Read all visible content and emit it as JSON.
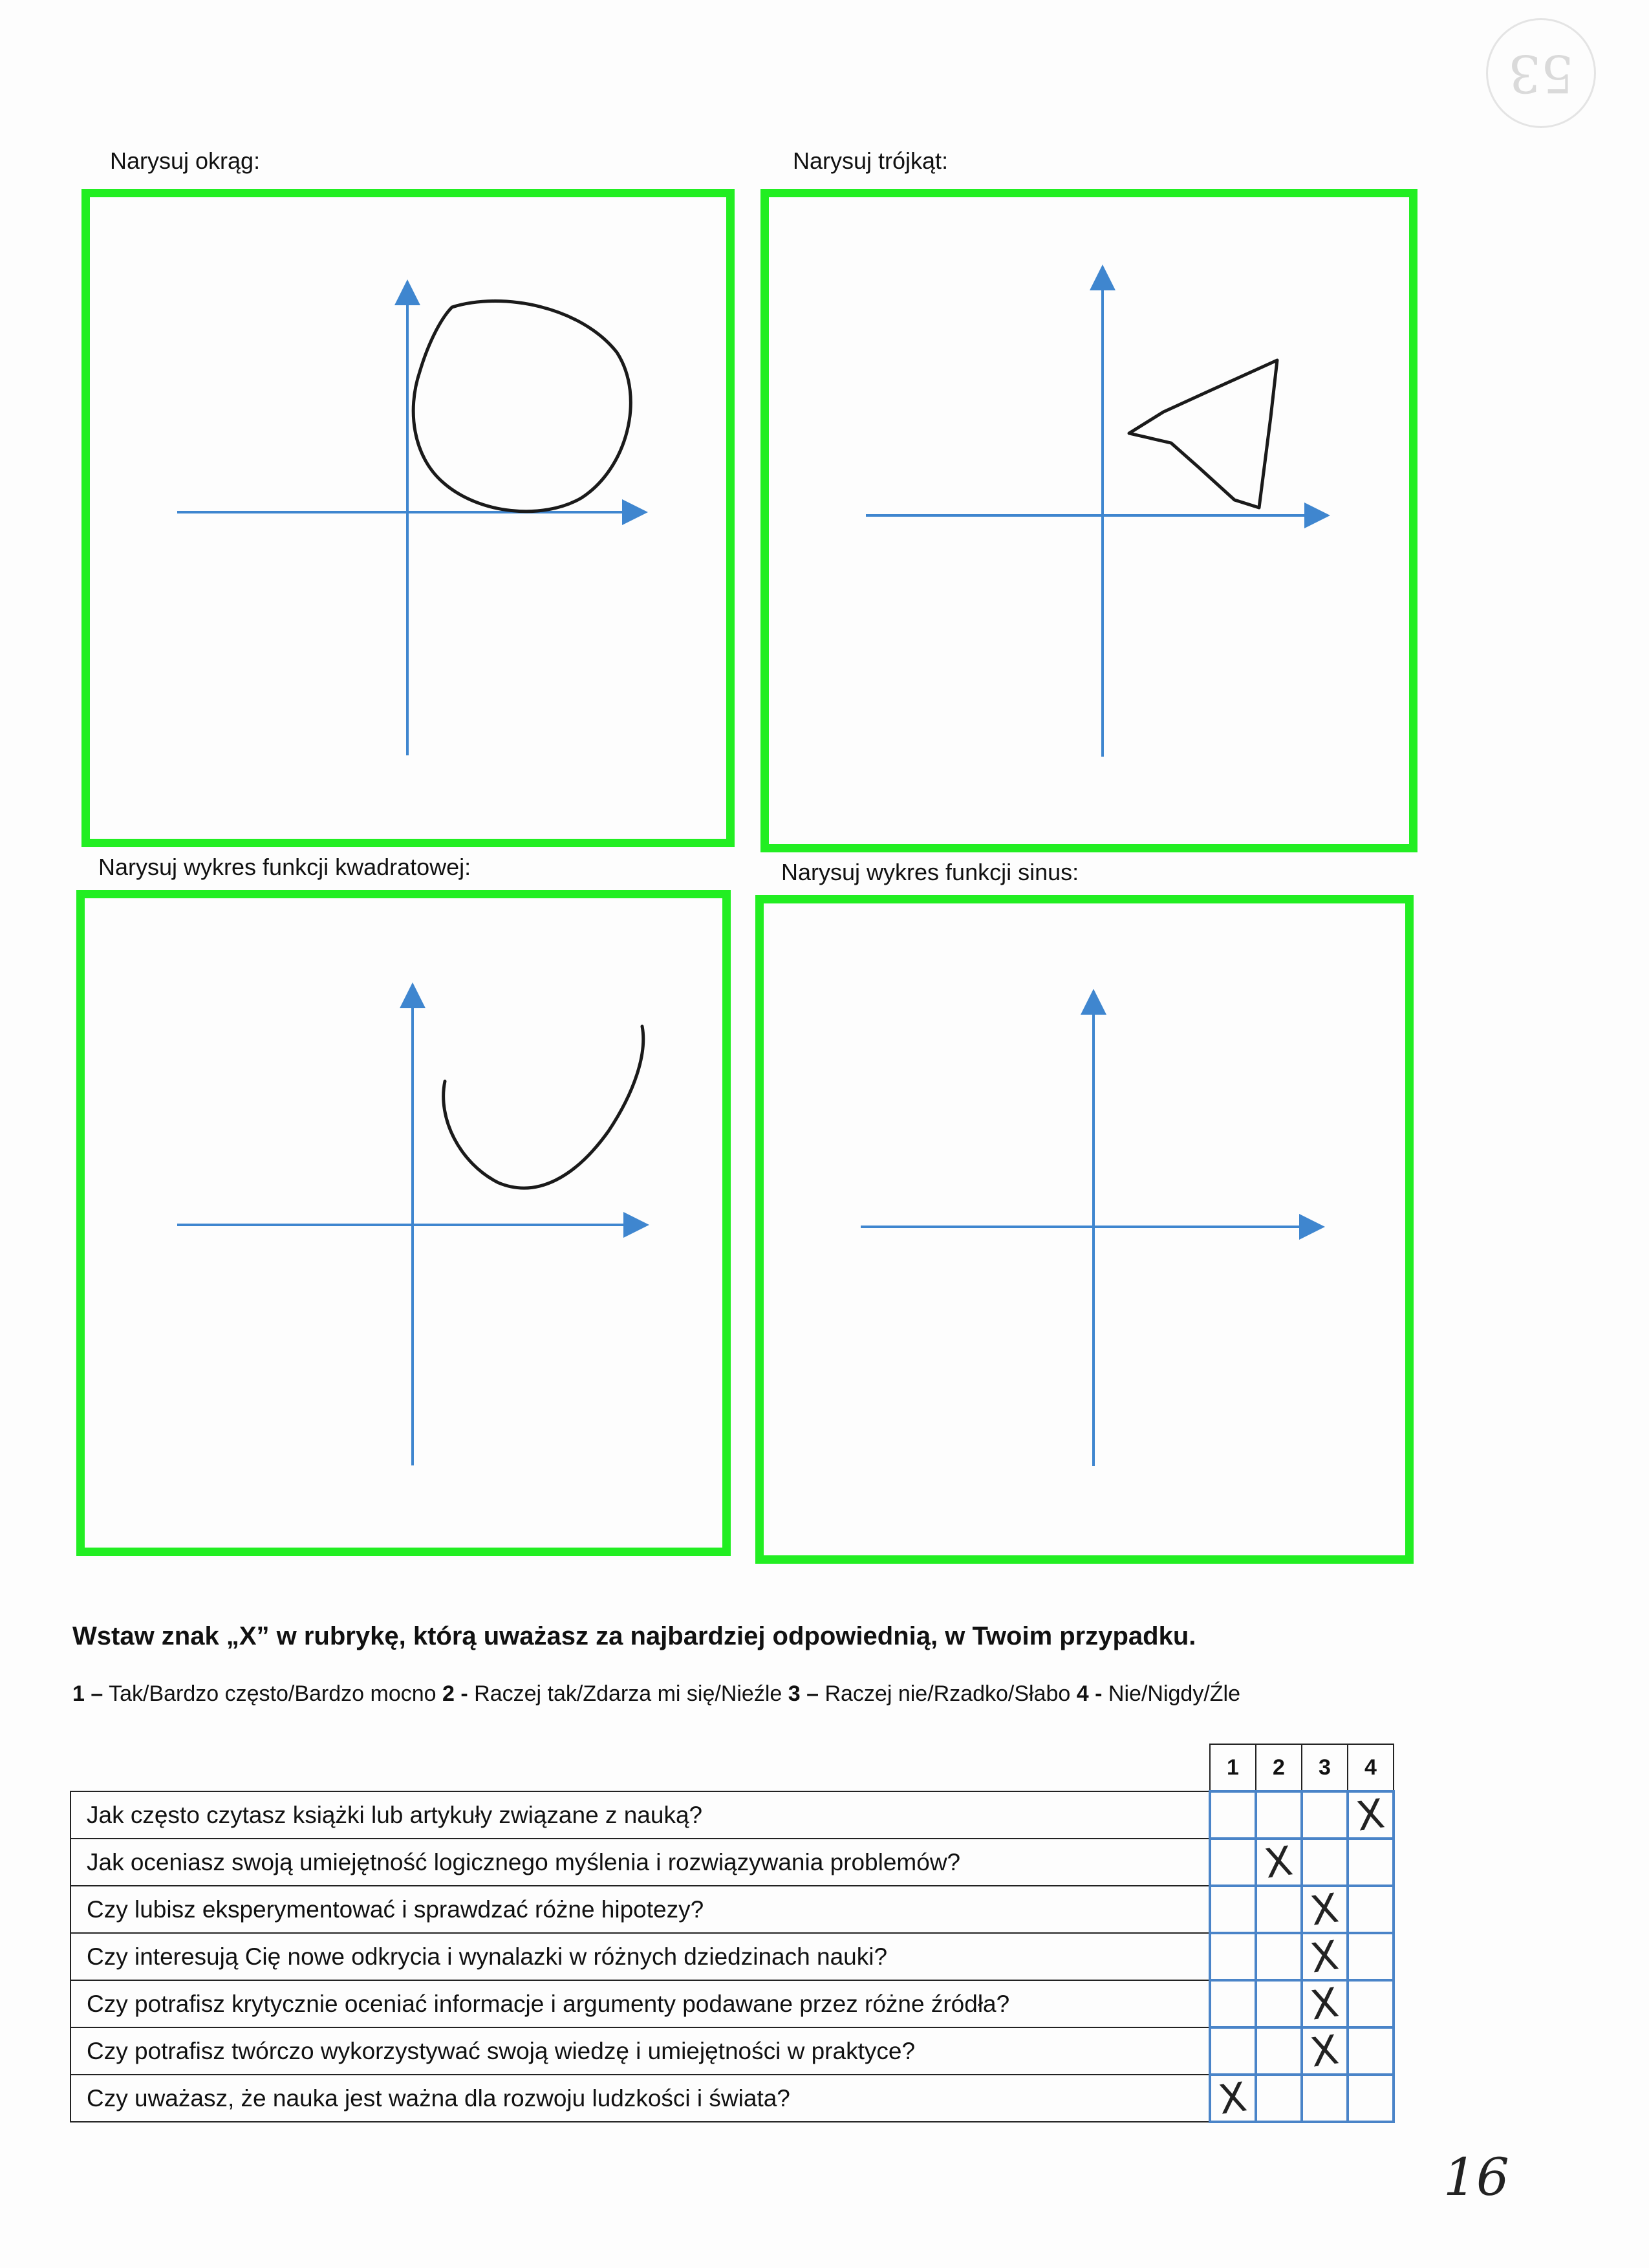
{
  "stamp": {
    "number": "53"
  },
  "boxes": [
    {
      "label": "Narysuj okrąg:"
    },
    {
      "label": "Narysuj trójkąt:"
    },
    {
      "label": "Narysuj wykres funkcji kwadratowej:"
    },
    {
      "label": "Narysuj wykres funkcji sinus:"
    }
  ],
  "instruction": "Wstaw znak „X” w rubrykę, którą uważasz za najbardziej odpowiednią, w Twoim przypadku.",
  "legend": {
    "n1": "1 –",
    "t1": " Tak/Bardzo często/Bardzo mocno ",
    "n2": "2 -",
    "t2": " Raczej tak/Zdarza mi się/Nieźle ",
    "n3": "3 –",
    "t3": " Raczej nie/Rzadko/Słabo ",
    "n4": "4 -",
    "t4": " Nie/Nigdy/Źle"
  },
  "table": {
    "headers": [
      "1",
      "2",
      "3",
      "4"
    ],
    "mark_symbol": "X",
    "rows": [
      {
        "question": "Jak często czytasz książki lub artykuły związane z nauką?",
        "answer": 4
      },
      {
        "question": "Jak oceniasz swoją umiejętność logicznego myślenia i rozwiązywania problemów?",
        "answer": 2
      },
      {
        "question": "Czy lubisz eksperymentować i sprawdzać różne hipotezy?",
        "answer": 3
      },
      {
        "question": "Czy interesują Cię nowe odkrycia i wynalazki w różnych dziedzinach nauki?",
        "answer": 3
      },
      {
        "question": "Czy potrafisz krytycznie oceniać informacje i argumenty podawane przez różne źródła?",
        "answer": 3
      },
      {
        "question": "Czy potrafisz twórczo wykorzystywać swoją wiedzę i umiejętności w praktyce?",
        "answer": 3
      },
      {
        "question": "Czy uważasz, że nauka jest ważna dla rozwoju ludzkości i świata?",
        "answer": 1
      }
    ]
  },
  "page_number": "16",
  "colors": {
    "frame": "#22ee22",
    "axis": "#3f86cf",
    "grid": "#4a84c8",
    "ink": "#1a1a1a"
  }
}
